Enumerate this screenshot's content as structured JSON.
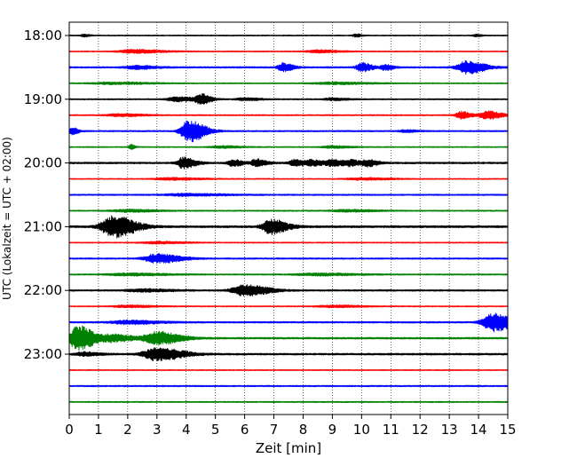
{
  "chart_data": {
    "type": "line",
    "subtype": "helicorder",
    "title": "",
    "xlabel": "Zeit  [min]",
    "ylabel": "UTC (Lokalzeit = UTC + 02:00)",
    "xlim": [
      0,
      15
    ],
    "x_ticks": [
      "0",
      "1",
      "2",
      "3",
      "4",
      "5",
      "6",
      "7",
      "8",
      "9",
      "10",
      "11",
      "12",
      "13",
      "14",
      "15"
    ],
    "y_ticks": [
      {
        "label": "18:00",
        "trace": 0
      },
      {
        "label": "19:00",
        "trace": 4
      },
      {
        "label": "20:00",
        "trace": 8
      },
      {
        "label": "21:00",
        "trace": 12
      },
      {
        "label": "22:00",
        "trace": 16
      },
      {
        "label": "23:00",
        "trace": 20
      }
    ],
    "grid": "vertical dotted at each minute",
    "trace_interval_min": 15,
    "color_cycle": [
      "#000000",
      "#ff0000",
      "#0000ff",
      "#008000"
    ],
    "traces": [
      {
        "start": "18:00",
        "noise": 0.6,
        "events": [
          {
            "t": 0.5,
            "amp": 1.5,
            "w": 0.3
          },
          {
            "t": 9.8,
            "amp": 1.5,
            "w": 0.3
          },
          {
            "t": 13.9,
            "amp": 1.2,
            "w": 0.3
          }
        ]
      },
      {
        "start": "18:15",
        "noise": 0.6,
        "events": [
          {
            "t": 2.2,
            "amp": 2.0,
            "w": 1.5
          },
          {
            "t": 8.5,
            "amp": 1.5,
            "w": 1.2
          }
        ]
      },
      {
        "start": "18:30",
        "noise": 0.9,
        "events": [
          {
            "t": 2.3,
            "amp": 1.8,
            "w": 1.0
          },
          {
            "t": 7.3,
            "amp": 4.5,
            "w": 0.5
          },
          {
            "t": 10.0,
            "amp": 5.0,
            "w": 0.5
          },
          {
            "t": 10.8,
            "amp": 3.0,
            "w": 0.4
          },
          {
            "t": 13.6,
            "amp": 7.0,
            "w": 0.9
          }
        ]
      },
      {
        "start": "18:45",
        "noise": 0.6,
        "events": [
          {
            "t": 1.5,
            "amp": 1.2,
            "w": 2.0
          },
          {
            "t": 9.0,
            "amp": 1.2,
            "w": 2.0
          }
        ]
      },
      {
        "start": "19:00",
        "noise": 0.7,
        "events": [
          {
            "t": 3.7,
            "amp": 2.5,
            "w": 1.0
          },
          {
            "t": 4.5,
            "amp": 5.0,
            "w": 0.5
          },
          {
            "t": 6.0,
            "amp": 1.5,
            "w": 0.8
          },
          {
            "t": 9.0,
            "amp": 1.3,
            "w": 0.8
          }
        ]
      },
      {
        "start": "19:15",
        "noise": 0.7,
        "events": [
          {
            "t": 1.7,
            "amp": 1.4,
            "w": 1.2
          },
          {
            "t": 13.4,
            "amp": 4.0,
            "w": 0.5
          },
          {
            "t": 14.3,
            "amp": 4.5,
            "w": 0.7
          }
        ]
      },
      {
        "start": "19:30",
        "noise": 0.8,
        "events": [
          {
            "t": 0.1,
            "amp": 4.0,
            "w": 0.3
          },
          {
            "t": 4.1,
            "amp": 12.0,
            "w": 0.8
          },
          {
            "t": 11.5,
            "amp": 1.2,
            "w": 0.6
          }
        ]
      },
      {
        "start": "19:45",
        "noise": 0.6,
        "events": [
          {
            "t": 2.1,
            "amp": 3.0,
            "w": 0.2
          },
          {
            "t": 5.2,
            "amp": 1.3,
            "w": 1.0
          },
          {
            "t": 9.0,
            "amp": 1.3,
            "w": 1.0
          }
        ]
      },
      {
        "start": "20:00",
        "noise": 1.0,
        "events": [
          {
            "t": 3.9,
            "amp": 6.0,
            "w": 0.6
          },
          {
            "t": 5.6,
            "amp": 3.5,
            "w": 0.5
          },
          {
            "t": 6.4,
            "amp": 4.0,
            "w": 0.5
          },
          {
            "t": 7.7,
            "amp": 3.5,
            "w": 0.5
          },
          {
            "t": 8.3,
            "amp": 3.0,
            "w": 0.6
          },
          {
            "t": 9.0,
            "amp": 3.5,
            "w": 0.6
          },
          {
            "t": 9.6,
            "amp": 3.0,
            "w": 0.5
          },
          {
            "t": 10.2,
            "amp": 3.5,
            "w": 0.5
          }
        ]
      },
      {
        "start": "20:15",
        "noise": 0.6,
        "events": [
          {
            "t": 3.5,
            "amp": 1.3,
            "w": 1.5
          },
          {
            "t": 10.0,
            "amp": 1.2,
            "w": 1.5
          }
        ]
      },
      {
        "start": "20:30",
        "noise": 0.8,
        "events": [
          {
            "t": 4.0,
            "amp": 1.2,
            "w": 2.0
          }
        ]
      },
      {
        "start": "20:45",
        "noise": 0.7,
        "events": [
          {
            "t": 2.0,
            "amp": 1.4,
            "w": 1.5
          },
          {
            "t": 9.5,
            "amp": 1.2,
            "w": 1.5
          }
        ]
      },
      {
        "start": "21:00",
        "noise": 1.2,
        "events": [
          {
            "t": 1.5,
            "amp": 12.0,
            "w": 1.1
          },
          {
            "t": 6.9,
            "amp": 8.0,
            "w": 0.8
          }
        ]
      },
      {
        "start": "21:15",
        "noise": 0.6,
        "events": [
          {
            "t": 3.0,
            "amp": 1.2,
            "w": 1.5
          }
        ]
      },
      {
        "start": "21:30",
        "noise": 0.8,
        "events": [
          {
            "t": 3.0,
            "amp": 5.0,
            "w": 1.2
          }
        ]
      },
      {
        "start": "21:45",
        "noise": 0.7,
        "events": [
          {
            "t": 2.0,
            "amp": 1.3,
            "w": 2.0
          },
          {
            "t": 8.5,
            "amp": 1.3,
            "w": 2.0
          }
        ]
      },
      {
        "start": "22:00",
        "noise": 0.9,
        "events": [
          {
            "t": 2.5,
            "amp": 1.5,
            "w": 1.5
          },
          {
            "t": 6.0,
            "amp": 6.0,
            "w": 1.2
          }
        ]
      },
      {
        "start": "22:15",
        "noise": 0.6,
        "events": [
          {
            "t": 2.0,
            "amp": 1.2,
            "w": 1.5
          },
          {
            "t": 9.0,
            "amp": 1.2,
            "w": 1.5
          }
        ]
      },
      {
        "start": "22:30",
        "noise": 0.9,
        "events": [
          {
            "t": 2.0,
            "amp": 2.0,
            "w": 1.5
          },
          {
            "t": 14.5,
            "amp": 10.0,
            "w": 1.0
          }
        ]
      },
      {
        "start": "22:45",
        "noise": 1.0,
        "events": [
          {
            "t": 0.3,
            "amp": 14.0,
            "w": 0.8
          },
          {
            "t": 1.5,
            "amp": 4.0,
            "w": 1.0
          },
          {
            "t": 3.0,
            "amp": 7.0,
            "w": 1.2
          }
        ]
      },
      {
        "start": "23:00",
        "noise": 1.0,
        "events": [
          {
            "t": 0.5,
            "amp": 2.0,
            "w": 0.8
          },
          {
            "t": 3.0,
            "amp": 7.0,
            "w": 1.3
          }
        ]
      },
      {
        "start": "23:15",
        "noise": 0.6,
        "events": []
      },
      {
        "start": "23:30",
        "noise": 0.8,
        "events": []
      },
      {
        "start": "23:45",
        "noise": 0.7,
        "events": []
      }
    ]
  }
}
